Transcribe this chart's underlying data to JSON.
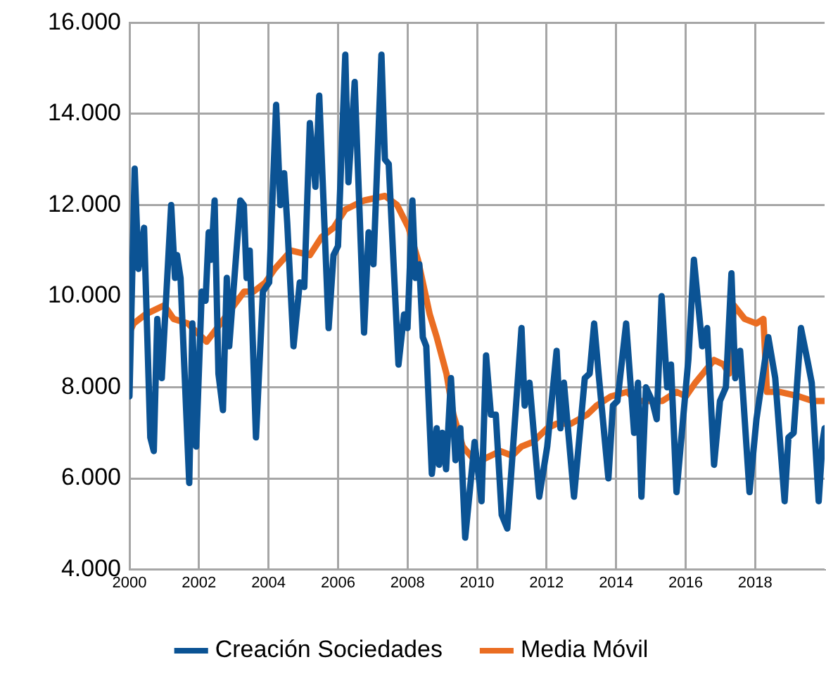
{
  "chart_data": {
    "type": "line",
    "xlim": [
      2000,
      2020
    ],
    "xticks": [
      2000,
      2002,
      2004,
      2006,
      2008,
      2010,
      2012,
      2014,
      2016,
      2018
    ],
    "ylim": [
      4000,
      16000
    ],
    "yticks": [
      {
        "value": 4000,
        "label": "4.000"
      },
      {
        "value": 6000,
        "label": "6.000"
      },
      {
        "value": 8000,
        "label": "8.000"
      },
      {
        "value": 10000,
        "label": "10.000"
      },
      {
        "value": 12000,
        "label": "12.000"
      },
      {
        "value": 14000,
        "label": "14.000"
      },
      {
        "value": 16000,
        "label": "16.000"
      }
    ],
    "grid": true,
    "legend": "bottom",
    "marker": "none",
    "line_style": "solid",
    "series": [
      {
        "name": "Creación Sociedades",
        "color": "#0b5394",
        "x": [
          2000.0,
          2000.15,
          2000.26,
          2000.42,
          2000.6,
          2000.7,
          2000.8,
          2000.93,
          2001.2,
          2001.31,
          2001.37,
          2001.47,
          2001.72,
          2001.81,
          2001.92,
          2002.08,
          2002.19,
          2002.28,
          2002.35,
          2002.45,
          2002.56,
          2002.69,
          2002.8,
          2002.87,
          2003.19,
          2003.29,
          2003.37,
          2003.46,
          2003.64,
          2003.84,
          2004.02,
          2004.22,
          2004.34,
          2004.45,
          2004.54,
          2004.72,
          2004.9,
          2005.03,
          2005.19,
          2005.35,
          2005.46,
          2005.73,
          2005.87,
          2006.0,
          2006.21,
          2006.3,
          2006.48,
          2006.75,
          2006.88,
          2007.02,
          2007.25,
          2007.35,
          2007.46,
          2007.74,
          2007.9,
          2008.0,
          2008.14,
          2008.23,
          2008.34,
          2008.44,
          2008.54,
          2008.7,
          2008.84,
          2008.91,
          2009.0,
          2009.11,
          2009.25,
          2009.38,
          2009.52,
          2009.66,
          2009.93,
          2010.13,
          2010.26,
          2010.4,
          2010.54,
          2010.71,
          2010.87,
          2011.01,
          2011.28,
          2011.37,
          2011.51,
          2011.79,
          2012.02,
          2012.29,
          2012.4,
          2012.5,
          2012.79,
          2013.1,
          2013.24,
          2013.37,
          2013.51,
          2013.78,
          2013.91,
          2014.04,
          2014.29,
          2014.52,
          2014.63,
          2014.73,
          2014.86,
          2015.04,
          2015.17,
          2015.31,
          2015.47,
          2015.58,
          2015.74,
          2016.08,
          2016.24,
          2016.38,
          2016.48,
          2016.62,
          2016.82,
          2016.99,
          2017.16,
          2017.32,
          2017.43,
          2017.57,
          2017.84,
          2018.04,
          2018.38,
          2018.58,
          2018.85,
          2018.96,
          2019.11,
          2019.32,
          2019.53,
          2019.63,
          2019.83,
          2019.94,
          2020.0
        ],
        "values": [
          7800,
          12800,
          10600,
          11500,
          6900,
          6600,
          9500,
          8200,
          12000,
          10400,
          10900,
          10400,
          5900,
          9400,
          6700,
          10100,
          9900,
          11400,
          10800,
          12100,
          8300,
          7500,
          10400,
          8900,
          12100,
          12000,
          10400,
          11000,
          6900,
          10100,
          10300,
          14200,
          12000,
          12700,
          11600,
          8900,
          10300,
          10200,
          13800,
          12400,
          14400,
          9300,
          10900,
          11100,
          15300,
          12500,
          14700,
          9200,
          11400,
          10700,
          15300,
          13000,
          12900,
          8500,
          9600,
          9300,
          12100,
          10400,
          10700,
          9100,
          8900,
          6100,
          7100,
          6300,
          7000,
          6200,
          8200,
          6400,
          7100,
          4700,
          6800,
          5500,
          8700,
          7400,
          7400,
          5200,
          4900,
          6400,
          9300,
          7600,
          8100,
          5600,
          6700,
          8800,
          7100,
          8100,
          5600,
          8200,
          8300,
          9400,
          8200,
          6000,
          7600,
          7700,
          9400,
          7000,
          8100,
          5600,
          8000,
          7700,
          7300,
          10000,
          8000,
          8500,
          5700,
          8600,
          10800,
          9700,
          8900,
          9300,
          6300,
          7700,
          8000,
          10500,
          8200,
          8800,
          5700,
          7300,
          9100,
          8200,
          5500,
          6900,
          7000,
          9300,
          8500,
          8100,
          5500,
          6800,
          7100
        ]
      },
      {
        "name": "Media Móvil",
        "color": "#ea6d22",
        "x": [
          2000.0,
          2000.12,
          2000.46,
          2001.0,
          2001.27,
          2001.68,
          2002.22,
          2002.62,
          2003.3,
          2003.57,
          2003.91,
          2004.18,
          2004.65,
          2005.19,
          2005.53,
          2005.87,
          2006.21,
          2006.75,
          2007.35,
          2007.7,
          2008.03,
          2008.3,
          2008.64,
          2008.84,
          2009.12,
          2009.32,
          2009.59,
          2009.93,
          2010.13,
          2010.67,
          2011.01,
          2011.28,
          2011.61,
          2012.02,
          2012.29,
          2012.7,
          2013.17,
          2013.44,
          2013.85,
          2014.32,
          2014.59,
          2014.93,
          2015.33,
          2015.74,
          2016.01,
          2016.28,
          2016.82,
          2017.09,
          2017.25,
          2017.39,
          2017.7,
          2018.04,
          2018.24,
          2018.34,
          2018.71,
          2019.26,
          2019.66,
          2020.0
        ],
        "values": [
          9200,
          9400,
          9600,
          9800,
          9500,
          9400,
          9000,
          9400,
          10100,
          10100,
          10300,
          10600,
          11000,
          10900,
          11300,
          11500,
          11900,
          12100,
          12200,
          12000,
          11500,
          10800,
          9600,
          9100,
          8300,
          7400,
          6700,
          6400,
          6400,
          6600,
          6500,
          6700,
          6800,
          7100,
          7200,
          7200,
          7400,
          7600,
          7800,
          7900,
          7700,
          7700,
          7700,
          7900,
          7800,
          8100,
          8600,
          8500,
          8300,
          9800,
          9500,
          9400,
          9500,
          7900,
          7900,
          7800,
          7700,
          7700
        ]
      }
    ]
  }
}
